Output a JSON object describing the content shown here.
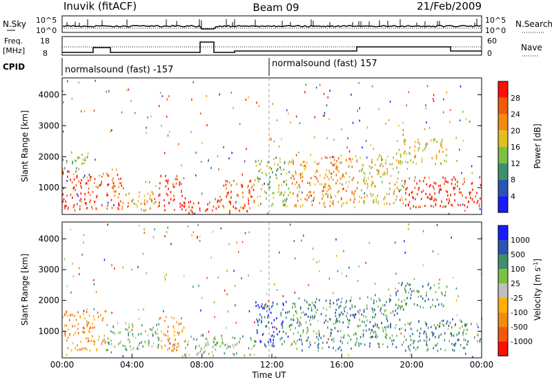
{
  "header": {
    "station": "Inuvik (fitACF)",
    "beam": "Beam 09",
    "date": "21/Feb/2009"
  },
  "top_panel": {
    "left_label": "N.Sky",
    "right_label": "N.Search",
    "left_ticks": [
      "10^5",
      "10^0"
    ],
    "right_ticks": [
      "10^5",
      "10^0"
    ]
  },
  "freq_panel": {
    "left_label_line1": "Freq.",
    "left_label_line2": "[MHz]",
    "right_label": "Nave",
    "left_ticks": [
      "18",
      "8"
    ],
    "right_ticks": [
      "60",
      "0"
    ],
    "cpid_label": "CPID",
    "cpid_left": "normalsound (fast) -157",
    "cpid_right": "normalsound (fast) 157"
  },
  "colors": {
    "power": [
      "#1a1aff",
      "#2b55b3",
      "#3f8f6a",
      "#7ac043",
      "#e0c020",
      "#f08c10",
      "#f05a0a",
      "#ff1000"
    ],
    "velocity": [
      "#ff1000",
      "#f05a0a",
      "#f08c10",
      "#ffb000",
      "#bfbfbf",
      "#7ac043",
      "#3f8f6a",
      "#2b55b3",
      "#1a1aff"
    ]
  },
  "chart_data": [
    {
      "type": "heatmap",
      "title": "",
      "ylabel": "Slant Range [km]",
      "xlabel": "Time UT",
      "x_ticks": [
        "00:00",
        "04:00",
        "08:00",
        "12:00",
        "16:00",
        "20:00",
        "00:00"
      ],
      "y_ticks": [
        1000,
        2000,
        3000,
        4000
      ],
      "xlim": [
        0,
        24
      ],
      "ylim": [
        180,
        4500
      ],
      "colorbar_label": "Power [dB]",
      "colorbar_ticks": [
        "28",
        "24",
        "20",
        "16",
        "12",
        "8",
        "4"
      ],
      "clim": [
        0,
        32
      ],
      "bands": [
        {
          "t0": 0.0,
          "t1": 1.5,
          "r0": 300,
          "r1": 1600,
          "level": 7
        },
        {
          "t0": 0.0,
          "t1": 1.5,
          "r0": 1600,
          "r1": 2200,
          "level": 3
        },
        {
          "t0": 1.5,
          "t1": 3.5,
          "r0": 300,
          "r1": 1500,
          "level": 6
        },
        {
          "t0": 3.5,
          "t1": 5.5,
          "r0": 300,
          "r1": 900,
          "level": 5
        },
        {
          "t0": 5.5,
          "t1": 7.0,
          "r0": 300,
          "r1": 1500,
          "level": 7
        },
        {
          "t0": 7.0,
          "t1": 9.0,
          "r0": 200,
          "r1": 700,
          "level": 7
        },
        {
          "t0": 9.0,
          "t1": 11.0,
          "r0": 200,
          "r1": 1300,
          "level": 6
        },
        {
          "t0": 11.0,
          "t1": 13.0,
          "r0": 400,
          "r1": 2000,
          "level": 3
        },
        {
          "t0": 13.0,
          "t1": 17.0,
          "r0": 400,
          "r1": 2100,
          "level": 5
        },
        {
          "t0": 17.0,
          "t1": 19.5,
          "r0": 500,
          "r1": 2100,
          "level": 4
        },
        {
          "t0": 19.5,
          "t1": 24.0,
          "r0": 400,
          "r1": 1400,
          "level": 7
        },
        {
          "t0": 19.0,
          "t1": 22.0,
          "r0": 1800,
          "r1": 2600,
          "level": 4
        }
      ]
    },
    {
      "type": "heatmap",
      "title": "",
      "ylabel": "Slant Range [km]",
      "xlabel": "Time UT",
      "x_ticks": [
        "00:00",
        "04:00",
        "08:00",
        "12:00",
        "16:00",
        "20:00",
        "00:00"
      ],
      "y_ticks": [
        1000,
        2000,
        3000,
        4000
      ],
      "xlim": [
        0,
        24
      ],
      "ylim": [
        180,
        4500
      ],
      "colorbar_label": "Velocity [m s^-1]",
      "colorbar_ticks": [
        "1000",
        "500",
        "100",
        "25",
        "-25",
        "-100",
        "-500",
        "-1000"
      ],
      "clim": [
        -1000,
        1000
      ],
      "bands": [
        {
          "t0": 0.0,
          "t1": 2.5,
          "r0": 400,
          "r1": 1700,
          "level": 2
        },
        {
          "t0": 2.5,
          "t1": 5.5,
          "r0": 400,
          "r1": 1300,
          "level": 5
        },
        {
          "t0": 5.5,
          "t1": 7.0,
          "r0": 400,
          "r1": 1500,
          "level": 2
        },
        {
          "t0": 7.0,
          "t1": 11.0,
          "r0": 200,
          "r1": 900,
          "level": 5
        },
        {
          "t0": 11.0,
          "t1": 13.0,
          "r0": 500,
          "r1": 2000,
          "level": 7
        },
        {
          "t0": 13.0,
          "t1": 17.0,
          "r0": 400,
          "r1": 2100,
          "level": 6
        },
        {
          "t0": 17.0,
          "t1": 19.5,
          "r0": 500,
          "r1": 2100,
          "level": 6
        },
        {
          "t0": 19.5,
          "t1": 24.0,
          "r0": 400,
          "r1": 1400,
          "level": 6
        },
        {
          "t0": 19.0,
          "t1": 22.0,
          "r0": 1800,
          "r1": 2600,
          "level": 6
        }
      ]
    }
  ]
}
